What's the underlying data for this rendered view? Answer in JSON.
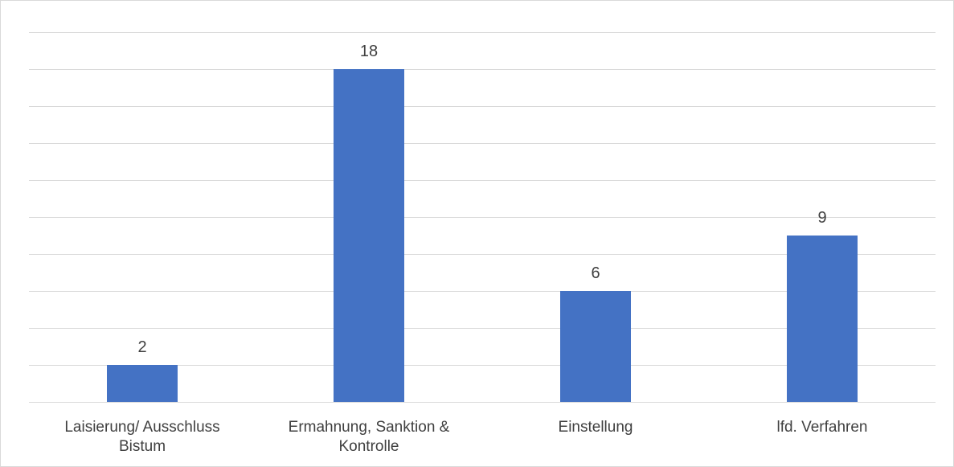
{
  "chart_data": {
    "type": "bar",
    "categories": [
      [
        "Laisierung/ Ausschluss",
        "Bistum"
      ],
      [
        "Ermahnung, Sanktion &",
        "Kontrolle"
      ],
      [
        "Einstellung"
      ],
      [
        "lfd. Verfahren"
      ]
    ],
    "values": [
      2,
      18,
      6,
      9
    ],
    "ylim": [
      0,
      20
    ],
    "y_step": 2,
    "grid": true,
    "data_labels": true,
    "bar_color": "#4472c4",
    "title": "",
    "xlabel": "",
    "ylabel": ""
  }
}
